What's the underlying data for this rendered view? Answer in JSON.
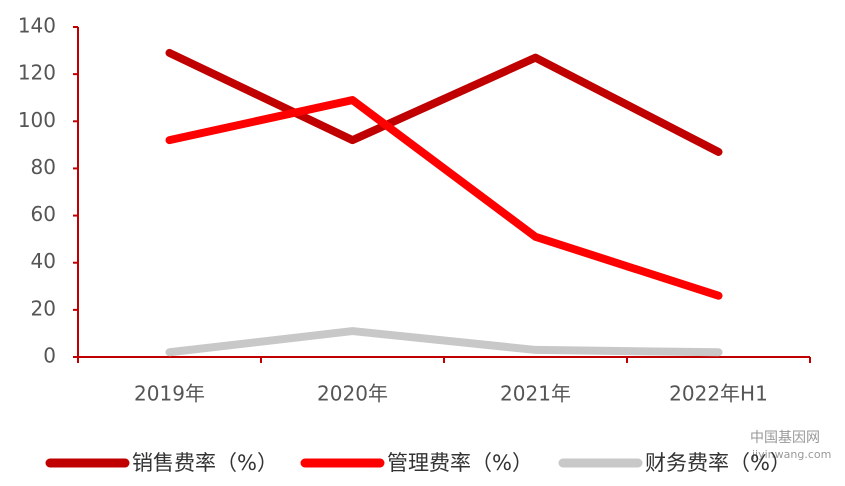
{
  "chart_data": {
    "type": "line",
    "categories": [
      "2019年",
      "2020年",
      "2021年",
      "2022年H1"
    ],
    "series": [
      {
        "name": "销售费率（%）",
        "color": "#c00000",
        "values": [
          129,
          92,
          127,
          87
        ]
      },
      {
        "name": "管理费率（%）",
        "color": "#ff0000",
        "values": [
          92,
          109,
          51,
          26
        ]
      },
      {
        "name": "财务费率（%）",
        "color": "#c8c8c8",
        "values": [
          2,
          11,
          3,
          2
        ]
      }
    ],
    "ylim": [
      0,
      140
    ],
    "yticks": [
      0,
      20,
      40,
      60,
      80,
      100,
      120,
      140
    ],
    "axis_color": "#c00000",
    "grid": false,
    "legend": "bottom",
    "watermark": [
      "中国基因网",
      "jiyinwang.com"
    ]
  }
}
